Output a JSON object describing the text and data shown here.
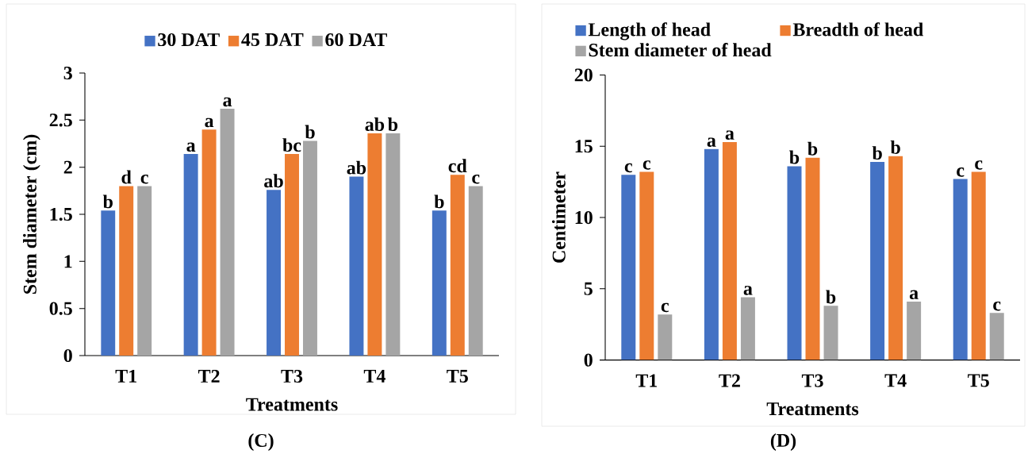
{
  "chart_data": [
    {
      "type": "bar",
      "categories": [
        "T1",
        "T2",
        "T3",
        "T4",
        "T5"
      ],
      "series": [
        {
          "name": "30 DAT",
          "color": "#4472c4",
          "values": [
            1.54,
            2.14,
            1.76,
            1.9,
            1.54
          ],
          "value_labels": [
            "b",
            "a",
            "ab",
            "ab",
            "b"
          ]
        },
        {
          "name": "45 DAT",
          "color": "#ed7d31",
          "values": [
            1.8,
            2.4,
            2.14,
            2.36,
            1.92
          ],
          "value_labels": [
            "d",
            "a",
            "bc",
            "ab",
            "cd"
          ]
        },
        {
          "name": "60 DAT",
          "color": "#a5a5a5",
          "values": [
            1.8,
            2.62,
            2.28,
            2.36,
            1.8
          ],
          "value_labels": [
            "c",
            "a",
            "b",
            "b",
            "c"
          ]
        }
      ],
      "ylim": [
        0,
        3
      ],
      "yticks": [
        0,
        0.5,
        1,
        1.5,
        2,
        2.5,
        3
      ],
      "xlabel": "Treatments",
      "ylabel": "Stem diameter (cm)",
      "legend": "top",
      "annotations": [
        "(C)"
      ]
    },
    {
      "type": "bar",
      "categories": [
        "T1",
        "T2",
        "T3",
        "T4",
        "T5"
      ],
      "series": [
        {
          "name": "Length of head",
          "color": "#4472c4",
          "values": [
            13.0,
            14.8,
            13.6,
            13.9,
            12.7
          ],
          "value_labels": [
            "c",
            "a",
            "b",
            "b",
            "c"
          ]
        },
        {
          "name": "Breadth of head",
          "color": "#ed7d31",
          "values": [
            13.2,
            15.3,
            14.2,
            14.3,
            13.2
          ],
          "value_labels": [
            "c",
            "a",
            "b",
            "b",
            "c"
          ]
        },
        {
          "name": "Stem diameter of head",
          "color": "#a5a5a5",
          "values": [
            3.2,
            4.4,
            3.8,
            4.1,
            3.3
          ],
          "value_labels": [
            "c",
            "a",
            "b",
            "a",
            "c"
          ]
        }
      ],
      "ylim": [
        0,
        20
      ],
      "yticks": [
        0,
        5,
        10,
        15,
        20
      ],
      "xlabel": "Treatments",
      "ylabel": "Centimeter",
      "legend": "top left",
      "annotations": [
        "(D)"
      ]
    }
  ]
}
